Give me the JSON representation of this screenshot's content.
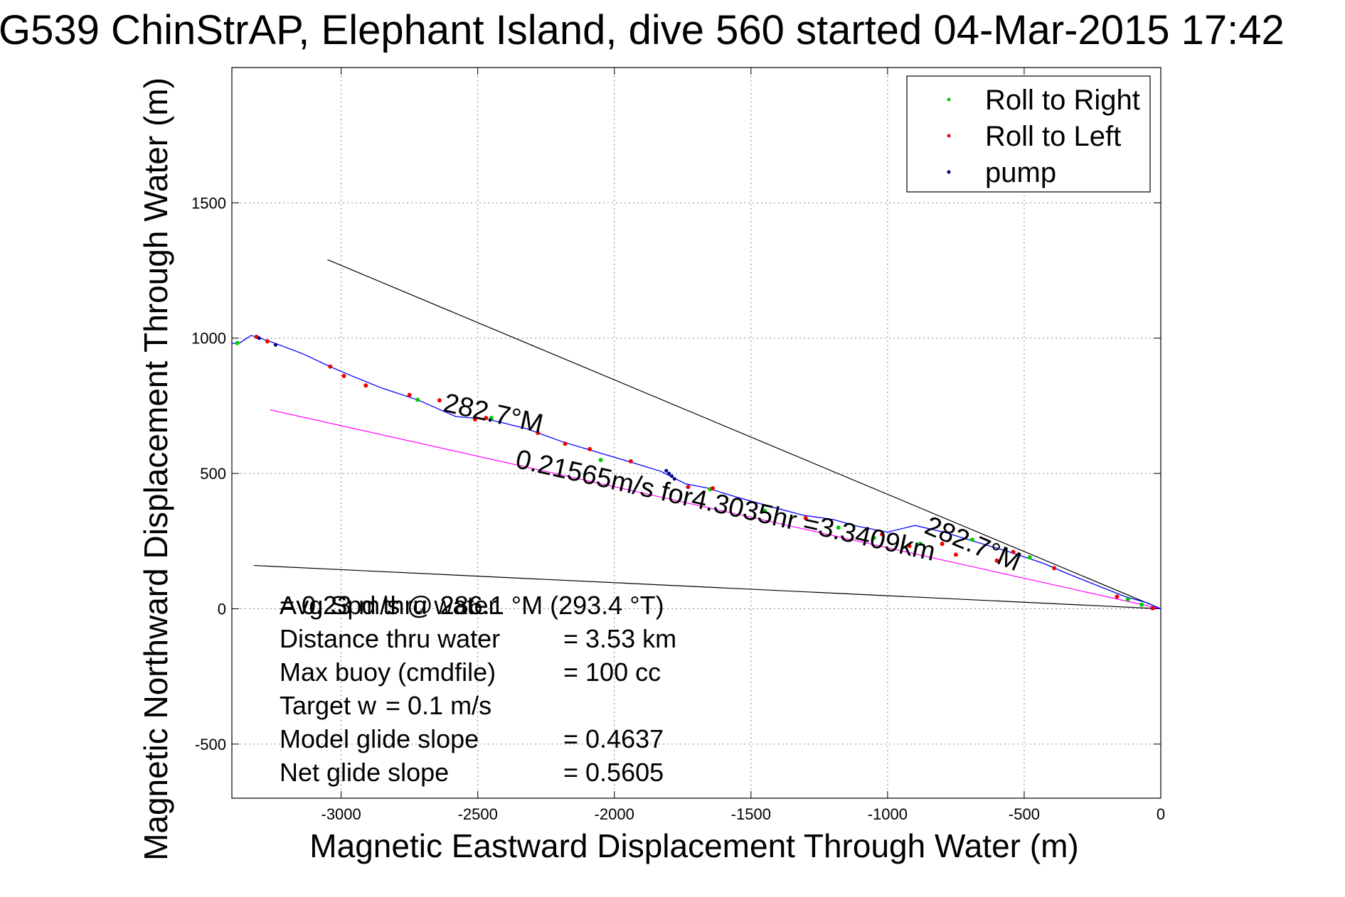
{
  "chart_data": {
    "type": "line",
    "title": "G539 ChinStrAP, Elephant Island, dive 560 started 04-Mar-2015 17:42",
    "xlabel": "Magnetic Eastward Displacement Through Water (m)",
    "ylabel": "Magnetic Northward Displacement Through Water (m)",
    "xlim": [
      -3400,
      0
    ],
    "ylim": [
      -700,
      2000
    ],
    "xticks": [
      -3000,
      -2500,
      -2000,
      -1500,
      -1000,
      -500,
      0
    ],
    "yticks": [
      -500,
      0,
      500,
      1000,
      1500
    ],
    "grid": true,
    "legend_position": "top-right",
    "legend": [
      {
        "label": "Roll to Right",
        "color": "#00cc00"
      },
      {
        "label": "Roll to Left",
        "color": "#ee0000"
      },
      {
        "label": "pump",
        "color": "#000080"
      }
    ],
    "track": {
      "color": "#0000ff",
      "x": [
        0,
        -50,
        -130,
        -230,
        -330,
        -430,
        -560,
        -680,
        -790,
        -900,
        -1000,
        -1110,
        -1200,
        -1310,
        -1430,
        -1560,
        -1660,
        -1740,
        -1830,
        -1960,
        -2100,
        -2190,
        -2320,
        -2460,
        -2580,
        -2720,
        -2850,
        -2960,
        -3030,
        -3140,
        -3260,
        -3330,
        -3370,
        -3400
      ],
      "y": [
        0,
        22,
        45,
        85,
        125,
        168,
        212,
        248,
        282,
        308,
        283,
        305,
        330,
        346,
        378,
        415,
        446,
        462,
        508,
        548,
        590,
        617,
        665,
        700,
        710,
        772,
        815,
        860,
        890,
        942,
        988,
        1010,
        983,
        980
      ]
    },
    "roll_right_points": {
      "x": [
        -70,
        -120,
        -480,
        -690,
        -880,
        -1050,
        -1180,
        -1450,
        -1650,
        -2050,
        -2450,
        -2720,
        -3380
      ],
      "y": [
        15,
        35,
        190,
        255,
        240,
        262,
        300,
        362,
        442,
        550,
        705,
        772,
        982
      ]
    },
    "roll_left_points": {
      "x": [
        -30,
        -160,
        -390,
        -540,
        -600,
        -750,
        -800,
        -920,
        -1020,
        -1300,
        -1640,
        -1730,
        -1940,
        -2090,
        -2180,
        -2280,
        -2470,
        -2510,
        -2640,
        -2750,
        -2910,
        -2990,
        -3040,
        -3270,
        -3310
      ],
      "y": [
        2,
        45,
        150,
        210,
        178,
        200,
        240,
        232,
        275,
        335,
        445,
        450,
        545,
        590,
        610,
        650,
        705,
        700,
        770,
        790,
        825,
        860,
        895,
        988,
        1005
      ]
    },
    "pump_points": {
      "x": [
        -1810,
        -1800,
        -1790,
        -1780,
        -3300,
        -3240
      ],
      "y": [
        510,
        500,
        490,
        480,
        1000,
        975
      ]
    },
    "reference_lines": [
      {
        "color": "#000000",
        "x": [
          0,
          -3050
        ],
        "y": [
          0,
          1290
        ]
      },
      {
        "color": "#000000",
        "x": [
          0,
          -3320
        ],
        "y": [
          0,
          160
        ]
      },
      {
        "color": "#ff00ff",
        "x": [
          0,
          -3260
        ],
        "y": [
          0,
          735
        ]
      }
    ],
    "annotations": [
      {
        "text": "282.7°M",
        "x": -2450,
        "y": 690
      },
      {
        "text": "0.21565m/s for4.3035hr =3.3409km",
        "x": -1600,
        "y": 350
      },
      {
        "text": "282.7°M",
        "x": -700,
        "y": 210
      }
    ],
    "stats": [
      {
        "label": "Avg Spd thru water",
        "value": "=  0.23 m/s @ 286.1 °M (293.4 °T)"
      },
      {
        "label": "Distance thru water",
        "value": "=  3.53 km"
      },
      {
        "label": "Max buoy (cmdfile)",
        "value": "= 100 cc"
      },
      {
        "label": "Target w",
        "value": "= 0.1 m/s"
      },
      {
        "label": "Model glide slope",
        "value": "= 0.4637"
      },
      {
        "label": "Net glide slope",
        "value": "= 0.5605"
      }
    ]
  }
}
